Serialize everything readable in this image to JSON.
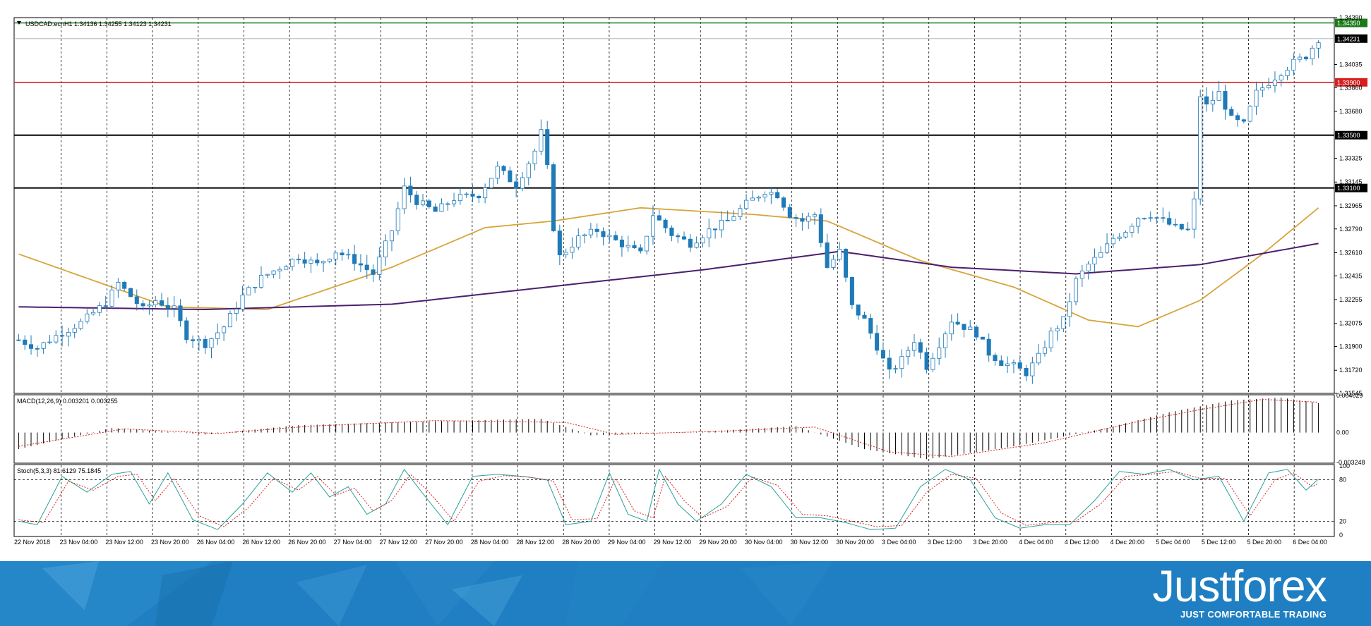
{
  "colors": {
    "background": "#ffffff",
    "bull_candle": "#ffffff",
    "bear_candle": "#1f7ab8",
    "candle_outline": "#1f7ab8",
    "ma_fast": "#d8a43a",
    "ma_slow": "#4b1f6f",
    "resistance_green": "#1a7a1a",
    "resistance_red": "#d62020",
    "level_black": "#000000",
    "banner": "#1f7fc2"
  },
  "chart_data": [
    {
      "type": "candlestick",
      "title": "USDCAD.ecnH1  1.34136 1.34255 1.34123 1.34231",
      "symbol": "USDCAD.ecn",
      "timeframe": "H1",
      "ohlc_header": [
        1.34136,
        1.34255,
        1.34123,
        1.34231
      ],
      "ylim": [
        1.31545,
        1.3439
      ],
      "yticks": [
        "1.34390",
        "1.34035",
        "1.33860",
        "1.33680",
        "1.33325",
        "1.33145",
        "1.32965",
        "1.32790",
        "1.32610",
        "1.32435",
        "1.32255",
        "1.32075",
        "1.31900",
        "1.31720",
        "1.31545"
      ],
      "xlabels": [
        "22 Nov 2018",
        "23 Nov 04:00",
        "23 Nov 12:00",
        "23 Nov 20:00",
        "26 Nov 04:00",
        "26 Nov 12:00",
        "26 Nov 20:00",
        "27 Nov 04:00",
        "27 Nov 12:00",
        "27 Nov 20:00",
        "28 Nov 04:00",
        "28 Nov 12:00",
        "28 Nov 20:00",
        "29 Nov 04:00",
        "29 Nov 12:00",
        "29 Nov 20:00",
        "30 Nov 04:00",
        "30 Nov 12:00",
        "30 Nov 20:00",
        "3 Dec 04:00",
        "3 Dec 12:00",
        "3 Dec 20:00",
        "4 Dec 04:00",
        "4 Dec 12:00",
        "4 Dec 20:00",
        "5 Dec 04:00",
        "5 Dec 12:00",
        "5 Dec 20:00",
        "6 Dec 04:00"
      ],
      "horizontal_levels": [
        {
          "label": "1.34350",
          "value": 1.3435,
          "color": "#1a7a1a"
        },
        {
          "label": "1.34231",
          "value": 1.34231,
          "color": "#aaaaaa"
        },
        {
          "label": "1.33900",
          "value": 1.339,
          "color": "#d62020"
        },
        {
          "label": "1.33500",
          "value": 1.335,
          "color": "#000000"
        },
        {
          "label": "1.33100",
          "value": 1.331,
          "color": "#000000"
        }
      ],
      "close_anchors": [
        [
          0,
          1.3195
        ],
        [
          3,
          1.3189
        ],
        [
          6,
          1.3198
        ],
        [
          10,
          1.3208
        ],
        [
          14,
          1.3223
        ],
        [
          16,
          1.3238
        ],
        [
          18,
          1.3228
        ],
        [
          20,
          1.3218
        ],
        [
          22,
          1.3225
        ],
        [
          25,
          1.3218
        ],
        [
          27,
          1.3198
        ],
        [
          30,
          1.3192
        ],
        [
          33,
          1.3205
        ],
        [
          36,
          1.3228
        ],
        [
          39,
          1.3242
        ],
        [
          42,
          1.325
        ],
        [
          45,
          1.3258
        ],
        [
          48,
          1.3252
        ],
        [
          51,
          1.3262
        ],
        [
          54,
          1.3255
        ],
        [
          57,
          1.3245
        ],
        [
          60,
          1.3278
        ],
        [
          62,
          1.331
        ],
        [
          64,
          1.33
        ],
        [
          67,
          1.3292
        ],
        [
          70,
          1.3302
        ],
        [
          74,
          1.3305
        ],
        [
          77,
          1.3325
        ],
        [
          80,
          1.3312
        ],
        [
          83,
          1.3338
        ],
        [
          84,
          1.3352
        ],
        [
          85,
          1.3325
        ],
        [
          86,
          1.328
        ],
        [
          87,
          1.3258
        ],
        [
          90,
          1.3272
        ],
        [
          93,
          1.3278
        ],
        [
          96,
          1.327
        ],
        [
          100,
          1.326
        ],
        [
          102,
          1.329
        ],
        [
          105,
          1.3275
        ],
        [
          108,
          1.3268
        ],
        [
          111,
          1.3278
        ],
        [
          114,
          1.3285
        ],
        [
          117,
          1.3298
        ],
        [
          120,
          1.3308
        ],
        [
          122,
          1.3305
        ],
        [
          124,
          1.329
        ],
        [
          126,
          1.3285
        ],
        [
          128,
          1.329
        ],
        [
          130,
          1.325
        ],
        [
          132,
          1.3262
        ],
        [
          134,
          1.322
        ],
        [
          136,
          1.321
        ],
        [
          138,
          1.319
        ],
        [
          140,
          1.317
        ],
        [
          142,
          1.318
        ],
        [
          144,
          1.3195
        ],
        [
          146,
          1.3175
        ],
        [
          148,
          1.3192
        ],
        [
          150,
          1.321
        ],
        [
          152,
          1.3205
        ],
        [
          154,
          1.32
        ],
        [
          156,
          1.3185
        ],
        [
          158,
          1.3178
        ],
        [
          160,
          1.3175
        ],
        [
          162,
          1.317
        ],
        [
          164,
          1.3182
        ],
        [
          166,
          1.32
        ],
        [
          168,
          1.321
        ],
        [
          170,
          1.324
        ],
        [
          172,
          1.3252
        ],
        [
          174,
          1.326
        ],
        [
          176,
          1.3272
        ],
        [
          178,
          1.3278
        ],
        [
          180,
          1.3288
        ],
        [
          182,
          1.329
        ],
        [
          184,
          1.3285
        ],
        [
          186,
          1.328
        ],
        [
          188,
          1.3278
        ],
        [
          189,
          1.33
        ],
        [
          190,
          1.338
        ],
        [
          191,
          1.3372
        ],
        [
          193,
          1.3382
        ],
        [
          195,
          1.3362
        ],
        [
          197,
          1.3358
        ],
        [
          199,
          1.3382
        ],
        [
          201,
          1.339
        ],
        [
          203,
          1.3398
        ],
        [
          205,
          1.3405
        ],
        [
          207,
          1.341
        ],
        [
          209,
          1.3423
        ]
      ],
      "ma_fast": [
        [
          0,
          1.326
        ],
        [
          24,
          1.322
        ],
        [
          40,
          1.3218
        ],
        [
          60,
          1.325
        ],
        [
          75,
          1.328
        ],
        [
          86,
          1.3285
        ],
        [
          100,
          1.3295
        ],
        [
          118,
          1.329
        ],
        [
          130,
          1.3285
        ],
        [
          145,
          1.3255
        ],
        [
          160,
          1.3235
        ],
        [
          172,
          1.321
        ],
        [
          180,
          1.3205
        ],
        [
          190,
          1.3225
        ],
        [
          200,
          1.326
        ],
        [
          209,
          1.3295
        ]
      ],
      "ma_slow": [
        [
          0,
          1.322
        ],
        [
          30,
          1.3218
        ],
        [
          60,
          1.3222
        ],
        [
          85,
          1.3235
        ],
        [
          110,
          1.3248
        ],
        [
          132,
          1.3262
        ],
        [
          150,
          1.325
        ],
        [
          170,
          1.3245
        ],
        [
          190,
          1.3252
        ],
        [
          209,
          1.3268
        ]
      ],
      "candle_count": 210
    },
    {
      "type": "histogram",
      "title": "MACD(12,26,9) 0.003201 0.003255",
      "params": "12,26,9",
      "main": 0.003201,
      "signal": 0.003255,
      "ylim": [
        -0.003248,
        0.004029
      ],
      "yticks": [
        "0.004029",
        "0.00",
        "-0.003248"
      ],
      "anchors": [
        [
          0,
          -0.0018
        ],
        [
          15,
          0.0005
        ],
        [
          30,
          -0.0002
        ],
        [
          45,
          0.0008
        ],
        [
          65,
          0.0012
        ],
        [
          84,
          0.0015
        ],
        [
          92,
          -0.0003
        ],
        [
          110,
          0.0001
        ],
        [
          125,
          0.0007
        ],
        [
          136,
          -0.0018
        ],
        [
          146,
          -0.0029
        ],
        [
          160,
          -0.0015
        ],
        [
          175,
          0.0005
        ],
        [
          185,
          0.0022
        ],
        [
          195,
          0.0035
        ],
        [
          203,
          0.0038
        ],
        [
          209,
          0.0032
        ]
      ],
      "signal_anchors": [
        [
          0,
          -0.0015
        ],
        [
          17,
          0.0004
        ],
        [
          32,
          -0.0001
        ],
        [
          47,
          0.0007
        ],
        [
          67,
          0.0013
        ],
        [
          88,
          0.0011
        ],
        [
          96,
          -0.0002
        ],
        [
          115,
          0.0002
        ],
        [
          128,
          0.0006
        ],
        [
          140,
          -0.0021
        ],
        [
          150,
          -0.0026
        ],
        [
          165,
          -0.0011
        ],
        [
          180,
          0.0012
        ],
        [
          190,
          0.0025
        ],
        [
          200,
          0.0036
        ],
        [
          209,
          0.0033
        ]
      ]
    },
    {
      "type": "line",
      "title": "Stoch(5,3,3) 81.6129 75.1845",
      "params": "5,3,3",
      "main": 81.6129,
      "signal": 75.1845,
      "ylim": [
        0,
        100
      ],
      "yticks": [
        "100",
        "80",
        "20",
        "0"
      ],
      "levels": [
        80,
        20
      ],
      "k_anchors": [
        [
          0,
          20
        ],
        [
          3,
          15
        ],
        [
          7,
          85
        ],
        [
          11,
          62
        ],
        [
          15,
          88
        ],
        [
          18,
          92
        ],
        [
          21,
          45
        ],
        [
          24,
          90
        ],
        [
          28,
          22
        ],
        [
          32,
          8
        ],
        [
          36,
          45
        ],
        [
          40,
          90
        ],
        [
          44,
          62
        ],
        [
          47,
          90
        ],
        [
          50,
          55
        ],
        [
          53,
          70
        ],
        [
          56,
          30
        ],
        [
          59,
          45
        ],
        [
          62,
          95
        ],
        [
          65,
          60
        ],
        [
          69,
          15
        ],
        [
          73,
          85
        ],
        [
          77,
          88
        ],
        [
          81,
          85
        ],
        [
          85,
          80
        ],
        [
          88,
          15
        ],
        [
          92,
          20
        ],
        [
          95,
          90
        ],
        [
          98,
          30
        ],
        [
          101,
          20
        ],
        [
          103,
          95
        ],
        [
          106,
          45
        ],
        [
          109,
          20
        ],
        [
          113,
          45
        ],
        [
          117,
          88
        ],
        [
          121,
          70
        ],
        [
          125,
          25
        ],
        [
          129,
          25
        ],
        [
          133,
          18
        ],
        [
          137,
          8
        ],
        [
          141,
          10
        ],
        [
          145,
          70
        ],
        [
          149,
          95
        ],
        [
          153,
          80
        ],
        [
          157,
          25
        ],
        [
          161,
          10
        ],
        [
          165,
          15
        ],
        [
          169,
          15
        ],
        [
          173,
          50
        ],
        [
          177,
          92
        ],
        [
          181,
          88
        ],
        [
          185,
          95
        ],
        [
          189,
          80
        ],
        [
          193,
          85
        ],
        [
          197,
          20
        ],
        [
          201,
          90
        ],
        [
          204,
          95
        ],
        [
          207,
          65
        ],
        [
          209,
          81
        ]
      ],
      "d_anchors": [
        [
          0,
          22
        ],
        [
          4,
          18
        ],
        [
          8,
          78
        ],
        [
          12,
          65
        ],
        [
          16,
          85
        ],
        [
          19,
          88
        ],
        [
          22,
          50
        ],
        [
          25,
          82
        ],
        [
          29,
          28
        ],
        [
          33,
          12
        ],
        [
          37,
          40
        ],
        [
          41,
          82
        ],
        [
          45,
          65
        ],
        [
          48,
          85
        ],
        [
          51,
          58
        ],
        [
          54,
          68
        ],
        [
          57,
          35
        ],
        [
          60,
          50
        ],
        [
          63,
          88
        ],
        [
          66,
          62
        ],
        [
          70,
          20
        ],
        [
          74,
          78
        ],
        [
          78,
          86
        ],
        [
          82,
          84
        ],
        [
          86,
          78
        ],
        [
          89,
          22
        ],
        [
          93,
          24
        ],
        [
          96,
          82
        ],
        [
          99,
          35
        ],
        [
          102,
          25
        ],
        [
          104,
          85
        ],
        [
          107,
          50
        ],
        [
          110,
          25
        ],
        [
          114,
          42
        ],
        [
          118,
          84
        ],
        [
          122,
          72
        ],
        [
          126,
          30
        ],
        [
          130,
          28
        ],
        [
          134,
          20
        ],
        [
          138,
          12
        ],
        [
          142,
          14
        ],
        [
          146,
          62
        ],
        [
          150,
          88
        ],
        [
          154,
          82
        ],
        [
          158,
          32
        ],
        [
          162,
          14
        ],
        [
          166,
          18
        ],
        [
          170,
          20
        ],
        [
          174,
          45
        ],
        [
          178,
          85
        ],
        [
          182,
          88
        ],
        [
          186,
          92
        ],
        [
          190,
          82
        ],
        [
          194,
          82
        ],
        [
          198,
          28
        ],
        [
          202,
          80
        ],
        [
          205,
          90
        ],
        [
          208,
          70
        ],
        [
          209,
          75
        ]
      ]
    }
  ],
  "banner": {
    "brand": "Justforex",
    "tagline": "JUST COMFORTABLE TRADING"
  }
}
